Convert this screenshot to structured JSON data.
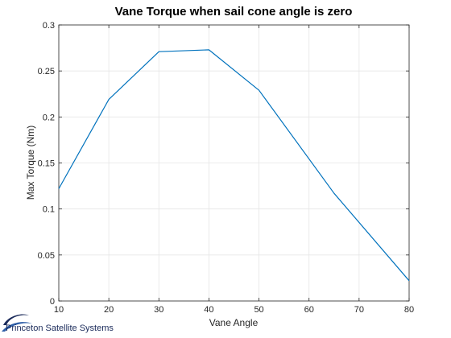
{
  "chart_data": {
    "type": "line",
    "title": "Vane Torque when sail cone angle is zero",
    "xlabel": "Vane Angle",
    "ylabel": "Max Torque (Nm)",
    "xlim": [
      10,
      80
    ],
    "ylim": [
      0,
      0.3
    ],
    "xticks": [
      10,
      20,
      30,
      40,
      50,
      60,
      70,
      80
    ],
    "yticks": [
      0,
      0.05,
      0.1,
      0.15,
      0.2,
      0.25,
      0.3
    ],
    "xtick_labels": [
      "10",
      "20",
      "30",
      "40",
      "50",
      "60",
      "70",
      "80"
    ],
    "ytick_labels": [
      "0",
      "0.05",
      "0.1",
      "0.15",
      "0.2",
      "0.25",
      "0.3"
    ],
    "grid": true,
    "series": [
      {
        "x": [
          10,
          20,
          30,
          40,
          50,
          65,
          80
        ],
        "y": [
          0.122,
          0.219,
          0.271,
          0.273,
          0.229,
          0.117,
          0.022
        ],
        "color": "#0072BD"
      }
    ]
  },
  "logo": {
    "text": "Princeton Satellite Systems",
    "color": "#1a2a5a",
    "icon": "orbit-swoosh-icon"
  }
}
